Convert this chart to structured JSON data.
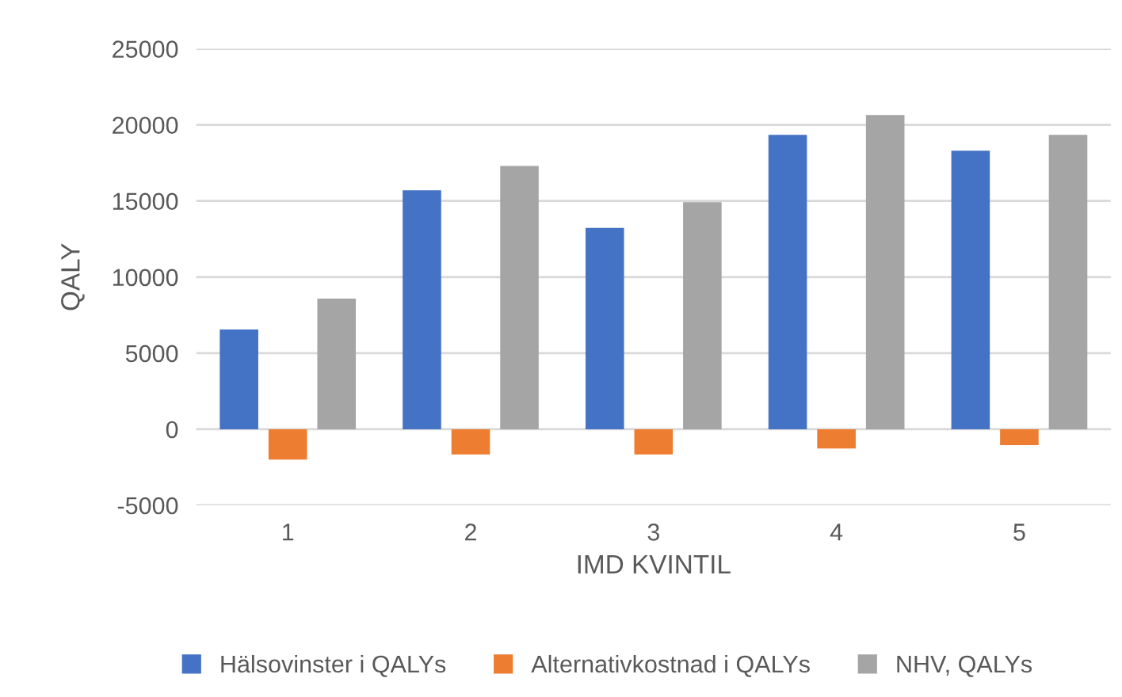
{
  "chart_data": {
    "type": "bar",
    "xlabel": "IMD KVINTIL",
    "ylabel": "QALY",
    "categories": [
      "1",
      "2",
      "3",
      "4",
      "5"
    ],
    "series": [
      {
        "name": "Hälsovinster i QALYs",
        "color": "#4472c4",
        "values": [
          6550,
          15700,
          13230,
          19340,
          18300
        ]
      },
      {
        "name": "Alternativkostnad i QALYs",
        "color": "#ed7d31",
        "values": [
          -2000,
          -1650,
          -1650,
          -1260,
          -1040
        ]
      },
      {
        "name": "NHV, QALYs",
        "color": "#a5a5a5",
        "values": [
          8590,
          17300,
          14920,
          20640,
          19340
        ]
      }
    ],
    "ylim": [
      -5000,
      25000
    ],
    "yticks": [
      -5000,
      0,
      5000,
      10000,
      15000,
      20000,
      25000
    ],
    "grid": "y",
    "legend": "bottom"
  }
}
